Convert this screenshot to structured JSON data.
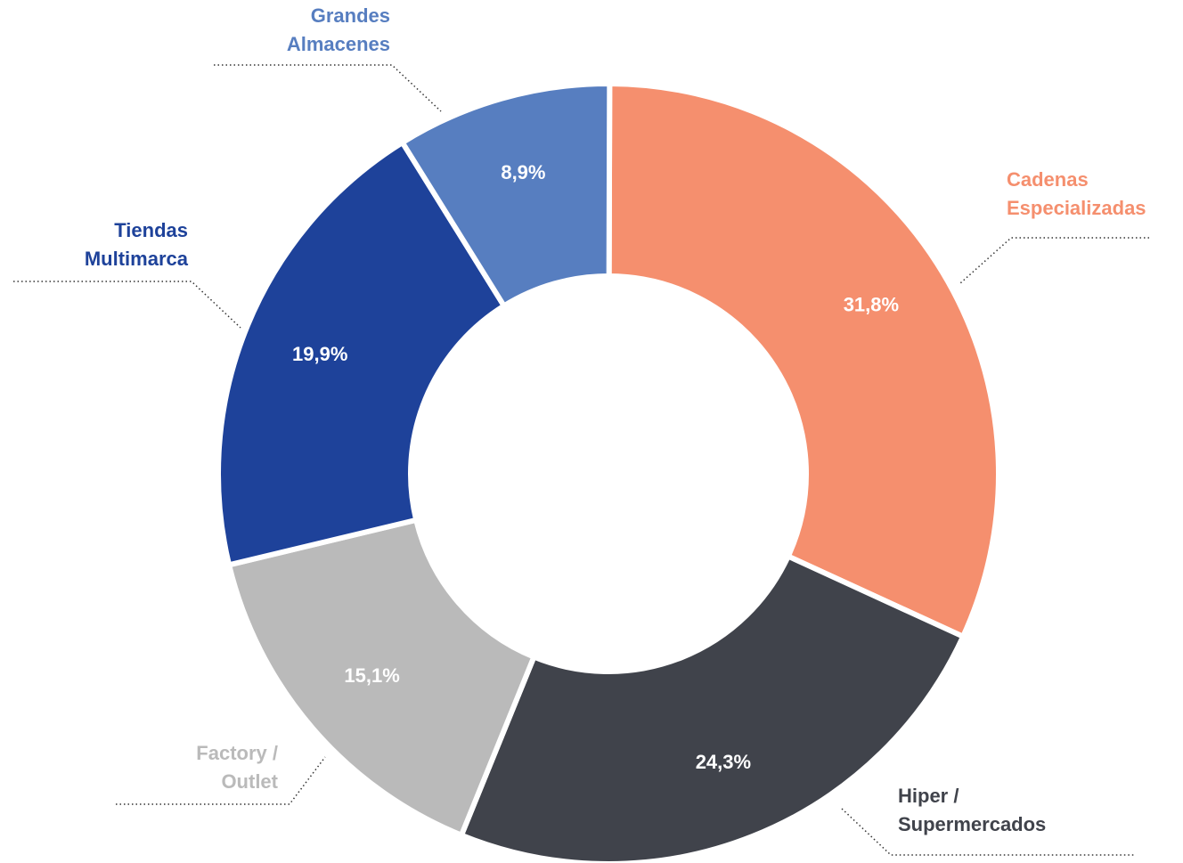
{
  "chart_data": {
    "type": "donut",
    "categories": [
      "Cadenas Especializadas",
      "Hiper / Supermercados",
      "Factory / Outlet",
      "Tiendas Multimarca",
      "Grandes Almacenes"
    ],
    "values": [
      31.8,
      24.3,
      15.1,
      19.9,
      8.9
    ],
    "value_labels": [
      "31,8%",
      "24,3%",
      "15,1%",
      "19,9%",
      "8,9%"
    ],
    "colors": [
      "#f58f6e",
      "#40434b",
      "#bababa",
      "#1e429a",
      "#577ec0"
    ]
  }
}
